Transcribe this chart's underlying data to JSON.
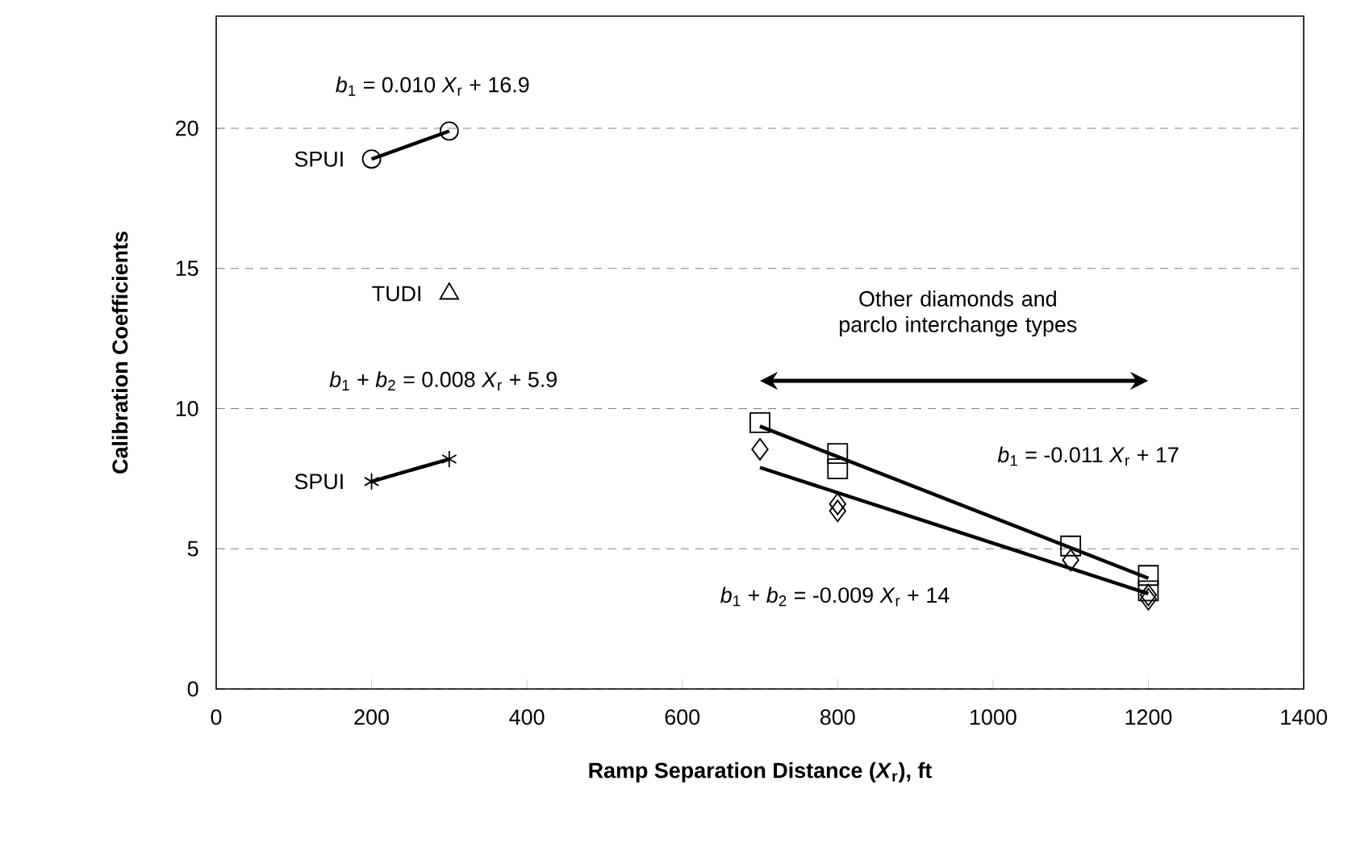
{
  "chart_data": {
    "type": "scatter",
    "xlabel": "Ramp Separation Distance (*X*$_{r}$), ft",
    "ylabel": "Calibration Coefficients",
    "xlim": [
      0,
      1400
    ],
    "ylim": [
      0,
      24
    ],
    "xticks": [
      0,
      200,
      400,
      600,
      800,
      1000,
      1200,
      1400
    ],
    "yticks": [
      0,
      5,
      10,
      15,
      20
    ],
    "grid": "y",
    "series": [
      {
        "name": "SPUI",
        "type": "line",
        "marker": "circle",
        "color": "#000000",
        "x": [
          200,
          300
        ],
        "values": [
          18.9,
          19.9
        ]
      },
      {
        "name": "TUDI",
        "marker": "triangle",
        "color": "#000000",
        "x": [
          300
        ],
        "values": [
          14.1
        ]
      },
      {
        "name": "SPUI",
        "type": "line",
        "marker": "cross",
        "color": "#000000",
        "x": [
          200,
          300
        ],
        "values": [
          7.4,
          8.2
        ]
      },
      {
        "marker": "square",
        "color": "#000000",
        "x": [
          700,
          800,
          800,
          1100,
          1200,
          1200
        ],
        "values": [
          9.5,
          8.4,
          7.85,
          5.1,
          4.05,
          3.5
        ]
      },
      {
        "marker": "diamond",
        "color": "#000000",
        "x": [
          700,
          800,
          800,
          1100,
          1200,
          1200
        ],
        "values": [
          8.55,
          6.6,
          6.35,
          4.6,
          3.35,
          3.2
        ]
      },
      {
        "type": "line",
        "marker": "none",
        "color": "#000000",
        "x": [
          700,
          1200
        ],
        "values": [
          9.37,
          3.95
        ]
      },
      {
        "type": "line",
        "marker": "none",
        "color": "#000000",
        "x": [
          700,
          1200
        ],
        "values": [
          7.9,
          3.4
        ]
      }
    ],
    "annotations": [
      "*b*$_{1}$ = 0.010 *X*$_{r}$ + 16.9",
      "*b*$_{1}$ + *b*$_{2}$ = 0.008 *X*$_{r}$ + 5.9",
      "*b*$_{1}$ = -0.011 *X*$_{r}$ + 17",
      "*b*$_{1}$ + *b*$_{2}$ = -0.009 *X*$_{r}$ + 14",
      "Other diamonds and parclo interchange types"
    ]
  }
}
